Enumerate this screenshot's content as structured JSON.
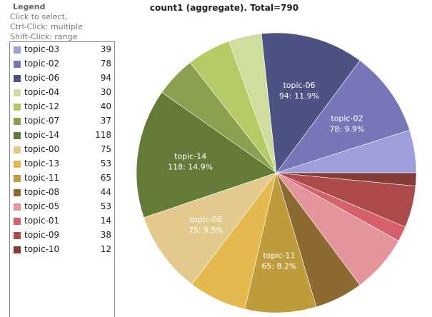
{
  "legend": {
    "title": "Legend",
    "hints": [
      "Click to select,",
      "Ctrl-Click: multiple",
      "Shift-Click: range"
    ]
  },
  "chart_data": {
    "type": "pie",
    "title": "count1 (aggregate). Total=790",
    "total": 790,
    "slices": [
      {
        "name": "topic-03",
        "value": 39,
        "color": "#9e9edb",
        "pct": "4.9%"
      },
      {
        "name": "topic-02",
        "value": 78,
        "color": "#7676b8",
        "pct": "9.9%",
        "label_line1": "topic-02",
        "label_line2": "78:  9.9%"
      },
      {
        "name": "topic-06",
        "value": 94,
        "color": "#4c5282",
        "pct": "11.9%",
        "label_line1": "topic-06",
        "label_line2": "94:  11.9%"
      },
      {
        "name": "topic-04",
        "value": 30,
        "color": "#cfdd9e",
        "pct": "3.8%"
      },
      {
        "name": "topic-12",
        "value": 40,
        "color": "#b5cc66",
        "pct": "5.1%"
      },
      {
        "name": "topic-07",
        "value": 37,
        "color": "#8ca14f",
        "pct": "4.7%"
      },
      {
        "name": "topic-14",
        "value": 118,
        "color": "#647a38",
        "pct": "14.9%",
        "label_line1": "topic-14",
        "label_line2": "118:  14.9%"
      },
      {
        "name": "topic-00",
        "value": 75,
        "color": "#e2ca8f",
        "pct": "9.5%",
        "label_line1": "topic-00",
        "label_line2": "75:  9.5%"
      },
      {
        "name": "topic-13",
        "value": 53,
        "color": "#e4b94f",
        "pct": "6.7%"
      },
      {
        "name": "topic-11",
        "value": 65,
        "color": "#bf9b3c",
        "pct": "8.2%",
        "label_line1": "topic-11",
        "label_line2": "65:  8.2%"
      },
      {
        "name": "topic-08",
        "value": 44,
        "color": "#8d6a32",
        "pct": "5.6%"
      },
      {
        "name": "topic-05",
        "value": 53,
        "color": "#e4959b",
        "pct": "6.7%"
      },
      {
        "name": "topic-01",
        "value": 14,
        "color": "#d6616b",
        "pct": "1.8%"
      },
      {
        "name": "topic-09",
        "value": 38,
        "color": "#ad4a4a",
        "pct": "4.8%"
      },
      {
        "name": "topic-10",
        "value": 12,
        "color": "#843c39",
        "pct": "1.5%"
      }
    ]
  }
}
